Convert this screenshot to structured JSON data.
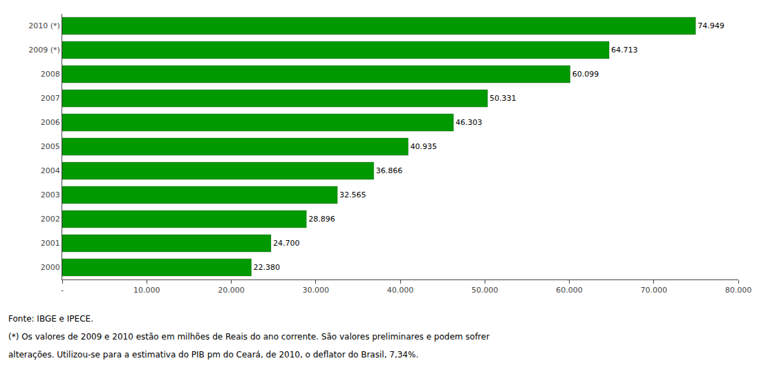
{
  "chart_data": {
    "type": "bar",
    "orientation": "horizontal",
    "categories": [
      "2000",
      "2001",
      "2002",
      "2003",
      "2004",
      "2005",
      "2006",
      "2007",
      "2008",
      "2009 (*)",
      "2010 (*)"
    ],
    "values": [
      22380,
      24700,
      28896,
      32565,
      36866,
      40935,
      46303,
      50331,
      60099,
      64713,
      74949
    ],
    "value_labels": [
      "22.380",
      "24.700",
      "28.896",
      "32.565",
      "36.866",
      "40.935",
      "46.303",
      "50.331",
      "60.099",
      "64.713",
      "74.949"
    ],
    "data_labels": true,
    "color": "#009900",
    "xlim": [
      0,
      80000
    ],
    "xticks": [
      {
        "value": 0,
        "label": "-"
      },
      {
        "value": 10000,
        "label": "10.000"
      },
      {
        "value": 20000,
        "label": "20.000"
      },
      {
        "value": 30000,
        "label": "30.000"
      },
      {
        "value": 40000,
        "label": "40.000"
      },
      {
        "value": 50000,
        "label": "50.000"
      },
      {
        "value": 60000,
        "label": "60.000"
      },
      {
        "value": 70000,
        "label": "70.000"
      },
      {
        "value": 80000,
        "label": "80.000"
      }
    ],
    "grid": false,
    "annotations": [
      "Fonte: IBGE e IPECE.",
      "(*) Os valores de 2009 e 2010 estão em milhões de Reais do ano corrente. São valores preliminares e podem sofrer",
      "alterações. Utilizou-se para a estimativa do PIB pm do Ceará, de 2010, o deflator do Brasil, 7,34%."
    ]
  }
}
